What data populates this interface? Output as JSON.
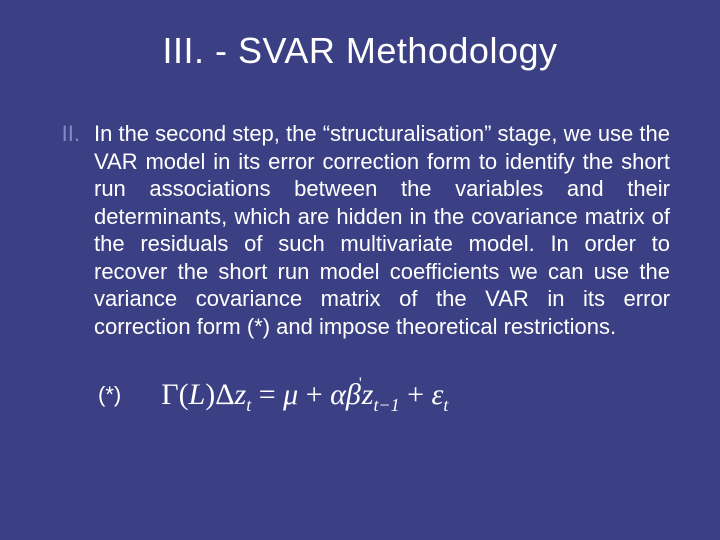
{
  "slide": {
    "background_color": "#3b4084",
    "text_color": "#ffffff",
    "accent_color": "#8389c6",
    "title": "III. - SVAR Methodology",
    "title_fontsize": 36,
    "list_numeral": "II.",
    "body_text": "In the second step, the “structuralisation” stage, we use the VAR model in its error correction form to identify the short run associations between the variables and their determinants, which are hidden in the covariance matrix of the residuals of such multivariate model. In order to recover the short run model coefficients we can use the variance covariance matrix of the VAR in its error correction form (*) and impose theoretical restrictions.",
    "body_fontsize": 22,
    "footnote_label": "(*)",
    "equation": {
      "font_family": "Times New Roman",
      "font_style": "italic",
      "fontsize": 30,
      "parts": {
        "Gamma": "Γ",
        "lparen": "(",
        "L": "L",
        "rparen": ")",
        "Delta": "Δ",
        "z1": "z",
        "sub_t1": "t",
        "eq": " = ",
        "mu": "μ",
        "plus1": " + ",
        "alpha": "α",
        "beta": "β",
        "prime": "'",
        "z2": "z",
        "sub_tm1": "t−1",
        "plus2": " + ",
        "eps": "ε",
        "sub_t2": "t"
      }
    }
  }
}
